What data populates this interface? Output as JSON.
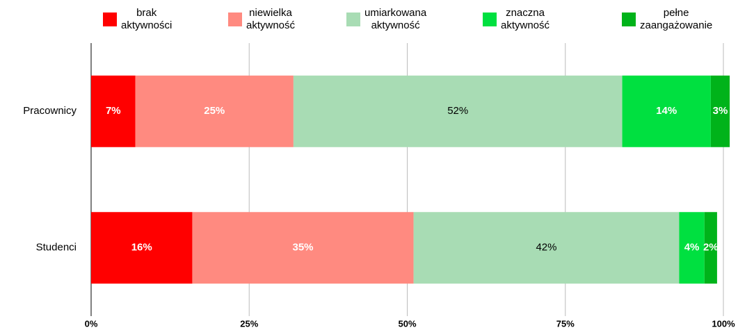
{
  "chart_data": {
    "type": "stacked_bar_horizontal",
    "categories": [
      "Pracownicy",
      "Studenci"
    ],
    "series": [
      {
        "name": "brak aktywności",
        "color": "#ff0000",
        "values": [
          7,
          16
        ],
        "value_labels": [
          "7%",
          "16%"
        ]
      },
      {
        "name": "niewielka aktywność",
        "color": "#ff8a80",
        "values": [
          25,
          35
        ],
        "value_labels": [
          "25%",
          "35%"
        ]
      },
      {
        "name": "umiarkowana aktywność",
        "color": "#a8dcb4",
        "values": [
          52,
          42
        ],
        "value_labels": [
          "52%",
          "42%"
        ]
      },
      {
        "name": "znaczna aktywność",
        "color": "#00e040",
        "values": [
          14,
          4
        ],
        "value_labels": [
          "14%",
          "4%"
        ]
      },
      {
        "name": "pełne zaangażowanie",
        "color": "#00b31a",
        "values": [
          3,
          2
        ],
        "value_labels": [
          "3%",
          "2%"
        ]
      }
    ],
    "xlim": [
      0,
      100
    ],
    "xticks": [
      {
        "value": 0,
        "label": "0%"
      },
      {
        "value": 25,
        "label": "25%"
      },
      {
        "value": 50,
        "label": "50%"
      },
      {
        "value": 75,
        "label": "75%"
      },
      {
        "value": 100,
        "label": "100%"
      }
    ],
    "grid": true,
    "legend": "top"
  }
}
